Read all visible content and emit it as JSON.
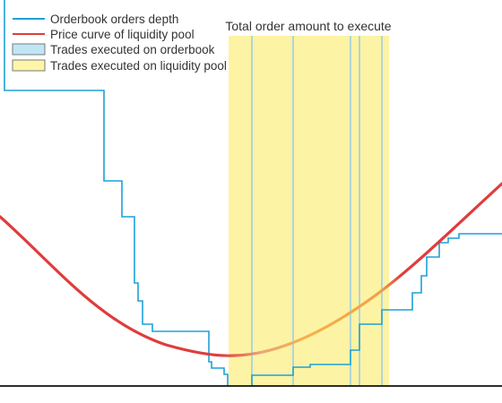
{
  "legend": {
    "items": [
      {
        "key": "depth",
        "label": "Orderbook orders depth",
        "swatch": "line",
        "color": "#1ea0d8"
      },
      {
        "key": "curve",
        "label": "Price curve of liquidity pool",
        "swatch": "line",
        "color": "#e03c3c"
      },
      {
        "key": "ob_trades",
        "label": "Trades executed on orderbook",
        "swatch": "box",
        "color": "#bfe6f5"
      },
      {
        "key": "pool_trades",
        "label": "Trades executed on liquidity pool",
        "swatch": "box",
        "color": "#fdf6a8"
      }
    ]
  },
  "banner": {
    "label": "Total order amount to execute",
    "color": "#fdf3a4"
  },
  "colors": {
    "depth_line": "#1ea0d8",
    "curve_line": "#e03c3c",
    "curve_highlight": "#f5b347",
    "trade_line": "#8ccbea",
    "baseline": "#111111"
  }
}
